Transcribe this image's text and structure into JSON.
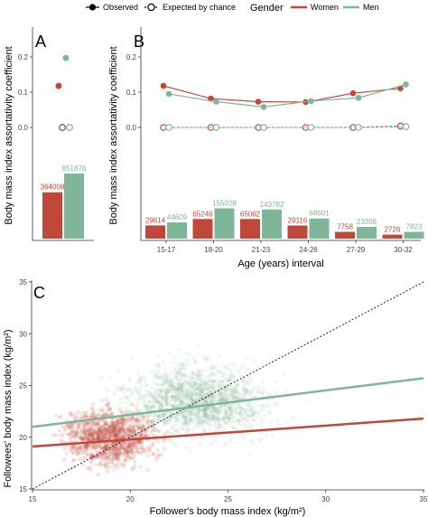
{
  "legend": {
    "observed_label": "Observed",
    "expected_label": "Expected by chance",
    "gender_title": "Gender",
    "women_label": "Women",
    "men_label": "Men"
  },
  "colors": {
    "women": "#c0483a",
    "men": "#7fb598"
  },
  "chart_data": [
    {
      "panel": "A",
      "type": "bar",
      "ylabel": "Body mass index assortativity coefficient",
      "yticks": [
        "0.0",
        "0.1",
        "0.2"
      ],
      "ylim": [
        -0.37,
        0.26
      ],
      "points": {
        "observed": {
          "Women": 0.118,
          "Men": 0.197
        },
        "expected": {
          "Women": 0.0,
          "Men": 0.0
        }
      },
      "bar_counts": {
        "Women": 364008,
        "Men": 851876
      },
      "bar_labels": {
        "Women": "364008",
        "Men": "851876"
      }
    },
    {
      "panel": "B",
      "type": "line",
      "xlabel": "Age (years) interval",
      "ylabel": "Body mass index assortativity coefficient",
      "categories": [
        "15-17",
        "18-20",
        "21-23",
        "24-26",
        "27-29",
        "30-32"
      ],
      "yticks": [
        "0.0",
        "0.1",
        "0.2"
      ],
      "ylim": [
        -0.37,
        0.26
      ],
      "series": [
        {
          "name": "Women",
          "observed": [
            0.118,
            0.082,
            0.073,
            0.072,
            0.097,
            0.111
          ],
          "expected": [
            0,
            0,
            0,
            0,
            0,
            0.004
          ]
        },
        {
          "name": "Men",
          "observed": [
            0.095,
            0.073,
            0.058,
            0.075,
            0.084,
            0.122
          ],
          "expected": [
            0,
            0,
            0,
            0,
            0,
            0.002
          ]
        }
      ],
      "bar_counts": {
        "Women": [
          29614,
          65246,
          65062,
          29116,
          7758,
          2726
        ],
        "Men": [
          44609,
          155028,
          143782,
          68601,
          23356,
          7823
        ]
      },
      "bar_labels": {
        "Women": [
          "29614",
          "65246",
          "65062",
          "29116",
          "7758",
          "2726"
        ],
        "Men": [
          "44609",
          "155028",
          "143782",
          "68601",
          "23356",
          "7823"
        ]
      }
    },
    {
      "panel": "C",
      "type": "scatter",
      "xlabel": "Follower's body mass index (kg/m²)",
      "ylabel": "Followees' body mass index (kg/m²)",
      "xlim": [
        15,
        35
      ],
      "ylim": [
        15,
        35
      ],
      "xticks": [
        "15",
        "20",
        "25",
        "30",
        "35"
      ],
      "yticks": [
        "15",
        "20",
        "25",
        "30",
        "35"
      ],
      "reference_line": "y = x (dotted)",
      "regression": [
        {
          "name": "Women",
          "x": [
            15,
            35
          ],
          "y": [
            19.1,
            21.8
          ]
        },
        {
          "name": "Men",
          "x": [
            15,
            35
          ],
          "y": [
            21.0,
            25.7
          ]
        }
      ],
      "point_clouds": [
        {
          "name": "Women",
          "x_center": 19.0,
          "y_center": 20.0,
          "x_spread": 2.8,
          "y_spread": 3.4
        },
        {
          "name": "Men",
          "x_center": 23.5,
          "y_center": 23.5,
          "x_spread": 4.5,
          "y_spread": 4.2
        }
      ]
    }
  ]
}
